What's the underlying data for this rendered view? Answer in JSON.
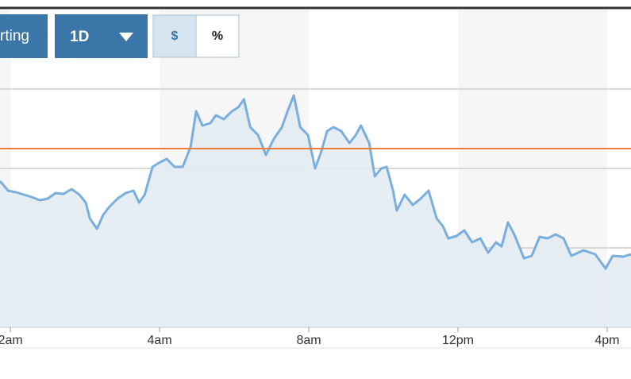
{
  "controls": [
    {
      "label": "rting"
    },
    {
      "label": "1D"
    },
    {
      "label": "$"
    },
    {
      "label": "%"
    }
  ],
  "chart_data": {
    "type": "area",
    "x": [
      -0.28,
      -0.06,
      0.15,
      0.36,
      0.57,
      0.79,
      1.0,
      1.21,
      1.43,
      1.64,
      1.85,
      2.02,
      2.13,
      2.32,
      2.49,
      2.66,
      2.87,
      3.09,
      3.3,
      3.45,
      3.6,
      3.81,
      3.98,
      4.19,
      4.4,
      4.62,
      4.83,
      4.98,
      5.15,
      5.36,
      5.51,
      5.72,
      5.94,
      6.11,
      6.26,
      6.43,
      6.64,
      6.85,
      7.06,
      7.28,
      7.43,
      7.6,
      7.77,
      7.98,
      8.17,
      8.34,
      8.49,
      8.66,
      8.87,
      9.09,
      9.26,
      9.4,
      9.62,
      9.77,
      9.94,
      10.09,
      10.26,
      10.36,
      10.57,
      10.79,
      11.0,
      11.21,
      11.43,
      11.6,
      11.74,
      11.96,
      12.17,
      12.38,
      12.6,
      12.81,
      13.02,
      13.17,
      13.34,
      13.51,
      13.77,
      13.98,
      14.19,
      14.4,
      14.62,
      14.83,
      15.04,
      15.36,
      15.68,
      15.96,
      16.15,
      16.43,
      16.64
    ],
    "values": [
      1.84,
      1.72,
      1.7,
      1.67,
      1.64,
      1.6,
      1.62,
      1.69,
      1.68,
      1.74,
      1.67,
      1.57,
      1.37,
      1.24,
      1.42,
      1.52,
      1.62,
      1.69,
      1.72,
      1.57,
      1.67,
      2.02,
      2.07,
      2.12,
      2.02,
      2.02,
      2.27,
      2.72,
      2.54,
      2.57,
      2.67,
      2.62,
      2.72,
      2.77,
      2.87,
      2.52,
      2.42,
      2.17,
      2.37,
      2.52,
      2.72,
      2.92,
      2.52,
      2.42,
      2.0,
      2.22,
      2.47,
      2.52,
      2.47,
      2.32,
      2.42,
      2.54,
      2.32,
      1.9,
      2.0,
      2.02,
      1.72,
      1.47,
      1.67,
      1.54,
      1.62,
      1.72,
      1.37,
      1.27,
      1.12,
      1.15,
      1.22,
      1.07,
      1.12,
      0.94,
      1.07,
      1.02,
      1.32,
      1.17,
      0.87,
      0.9,
      1.14,
      1.12,
      1.17,
      1.12,
      0.9,
      0.97,
      0.92,
      0.74,
      0.9,
      0.89,
      0.92
    ],
    "color": "#7aaede",
    "fill": "#e3ebf2",
    "reference": 2.25,
    "reference_color": "#f07c3a",
    "xlim": [
      -0.28,
      16.64
    ],
    "ylim": [
      0,
      4
    ],
    "gridlines": [
      1,
      2,
      3
    ],
    "xticks": [
      {
        "value": 0,
        "label": "2am"
      },
      {
        "value": 4,
        "label": "4am"
      },
      {
        "value": 8,
        "label": "8am"
      },
      {
        "value": 12,
        "label": "12pm"
      },
      {
        "value": 16,
        "label": "4pm"
      }
    ],
    "grid": true
  }
}
